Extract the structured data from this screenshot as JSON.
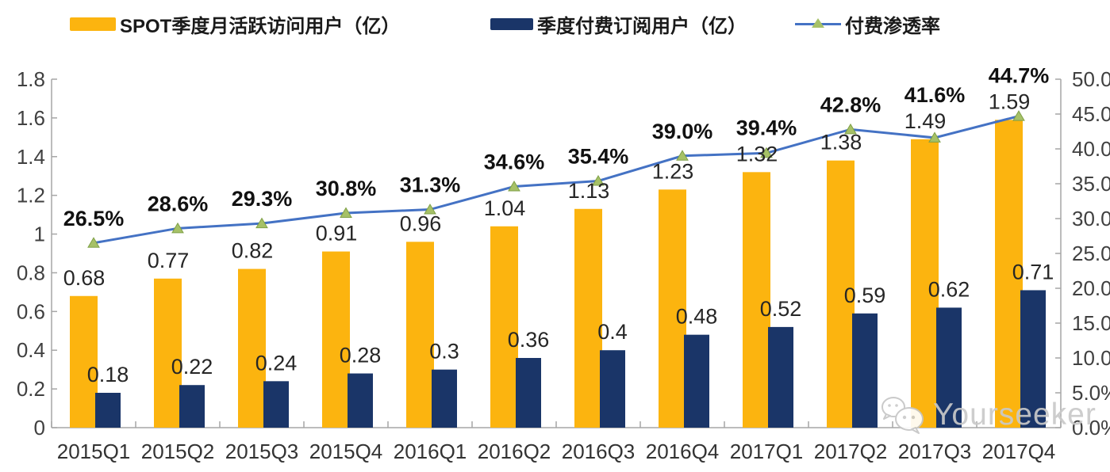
{
  "legend": {
    "mau": {
      "label": "SPOT季度月活跃访问用户（亿）",
      "color": "#FCB40F"
    },
    "subs": {
      "label": "季度付费订阅用户（亿）",
      "color": "#1A3568"
    },
    "penetration": {
      "label": "付费渗透率",
      "line_color": "#4472C4",
      "marker_color": "#A6C167",
      "marker_edge": "#7FA047"
    }
  },
  "watermark": {
    "icon": "wechat-icon",
    "text": "Yourseeker",
    "color": "#c9c9c9"
  },
  "colors": {
    "bar_mau": "#FCB40F",
    "bar_subs": "#1A3568",
    "line": "#4472C4",
    "marker_fill": "#A6C167",
    "marker_edge": "#7FA047",
    "axis": "#A6A6A6",
    "axis_label": "#404040",
    "data_label": "#262626",
    "pct_label": "#111111"
  },
  "chart_data": {
    "type": "combo_bar_line",
    "title": "",
    "categories": [
      "2015Q1",
      "2015Q2",
      "2015Q3",
      "2015Q4",
      "2016Q1",
      "2016Q2",
      "2016Q3",
      "2016Q4",
      "2017Q1",
      "2017Q2",
      "2017Q3",
      "2017Q4"
    ],
    "series": [
      {
        "name": "SPOT季度月活跃访问用户（亿）",
        "type": "bar",
        "axis": "left",
        "color": "#FCB40F",
        "values": [
          0.68,
          0.77,
          0.82,
          0.91,
          0.96,
          1.04,
          1.13,
          1.23,
          1.32,
          1.38,
          1.49,
          1.59
        ],
        "labels": [
          "0.68",
          "0.77",
          "0.82",
          "0.91",
          "0.96",
          "1.04",
          "1.13",
          "1.23",
          "1.32",
          "1.38",
          "1.49",
          "1.59"
        ]
      },
      {
        "name": "季度付费订阅用户（亿）",
        "type": "bar",
        "axis": "left",
        "color": "#1A3568",
        "values": [
          0.18,
          0.22,
          0.24,
          0.28,
          0.3,
          0.36,
          0.4,
          0.48,
          0.52,
          0.59,
          0.62,
          0.71
        ],
        "labels": [
          "0.18",
          "0.22",
          "0.24",
          "0.28",
          "0.3",
          "0.36",
          "0.4",
          "0.48",
          "0.52",
          "0.59",
          "0.62",
          "0.71"
        ]
      },
      {
        "name": "付费渗透率",
        "type": "line",
        "axis": "right",
        "color": "#4472C4",
        "marker": "triangle",
        "marker_color": "#A6C167",
        "values": [
          26.5,
          28.6,
          29.3,
          30.8,
          31.3,
          34.6,
          35.4,
          39.0,
          39.4,
          42.8,
          41.6,
          44.7
        ],
        "labels": [
          "26.5%",
          "28.6%",
          "29.3%",
          "30.8%",
          "31.3%",
          "34.6%",
          "35.4%",
          "39.0%",
          "39.4%",
          "42.8%",
          "41.6%",
          "44.7%"
        ]
      }
    ],
    "left_axis": {
      "min": 0,
      "max": 1.8,
      "step": 0.2,
      "ticks": [
        "0",
        "0.2",
        "0.4",
        "0.6",
        "0.8",
        "1",
        "1.2",
        "1.4",
        "1.6",
        "1.8"
      ]
    },
    "right_axis": {
      "min": 0,
      "max": 50,
      "step": 5,
      "ticks": [
        "0.0%",
        "5.0%",
        "10.0%",
        "15.0%",
        "20.0%",
        "25.0%",
        "30.0%",
        "35.0%",
        "40.0%",
        "45.0%",
        "50.0%"
      ]
    },
    "grid": false,
    "legend_position": "top"
  }
}
